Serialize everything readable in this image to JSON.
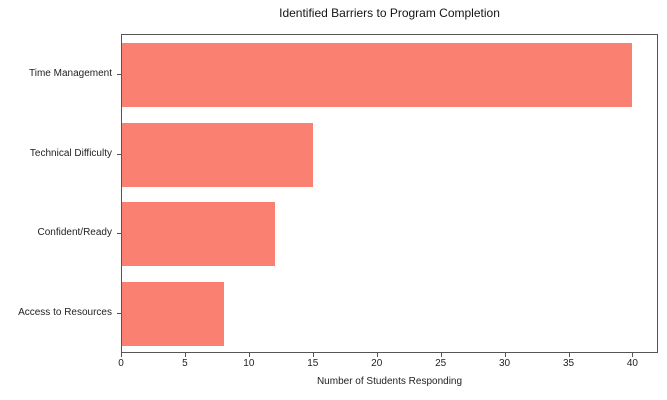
{
  "chart_data": {
    "type": "bar",
    "orientation": "horizontal",
    "title": "Identified Barriers to Program Completion",
    "categories": [
      "Time Management",
      "Technical Difficulty",
      "Confident/Ready",
      "Access to Resources"
    ],
    "values": [
      40,
      15,
      12,
      8
    ],
    "xlabel": "Number of Students Responding",
    "ylabel": "",
    "xlim": [
      0,
      42
    ],
    "xticks": [
      0,
      5,
      10,
      15,
      20,
      25,
      30,
      35,
      40
    ],
    "bar_color": "#fa8072",
    "grid": false,
    "legend": null,
    "background_color": "#ffffff"
  }
}
